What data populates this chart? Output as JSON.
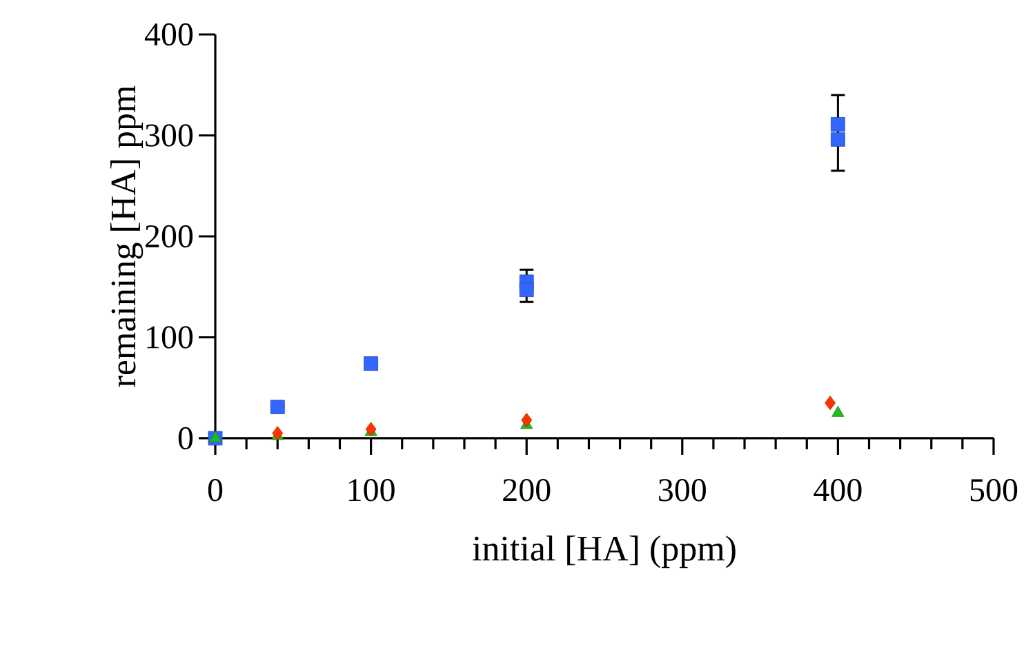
{
  "chart_data": {
    "type": "scatter",
    "xlabel": "initial [HA] (ppm)",
    "ylabel": "remaining [HA] ppm",
    "xlim": [
      0,
      500
    ],
    "ylim": [
      0,
      400
    ],
    "xticks": [
      0,
      100,
      200,
      300,
      400,
      500
    ],
    "yticks": [
      0,
      100,
      200,
      300,
      400
    ],
    "grid": false,
    "series": [
      {
        "color": "#3366ff",
        "marker": "square",
        "x": [
          0,
          40,
          100,
          200,
          200,
          400,
          400
        ],
        "values": [
          0,
          31,
          74,
          155,
          147,
          311,
          296
        ],
        "errors": [
          null,
          null,
          null,
          [
            135,
            167
          ],
          null,
          [
            265,
            340
          ],
          null
        ]
      },
      {
        "color": "#22bb22",
        "marker": "triangle",
        "x": [
          0,
          40,
          100,
          200,
          400
        ],
        "values": [
          0,
          2,
          6,
          13,
          25
        ]
      },
      {
        "color": "#ff3300",
        "marker": "diamond",
        "x": [
          40,
          100,
          200,
          395
        ],
        "values": [
          5,
          9,
          18,
          35
        ]
      }
    ]
  }
}
